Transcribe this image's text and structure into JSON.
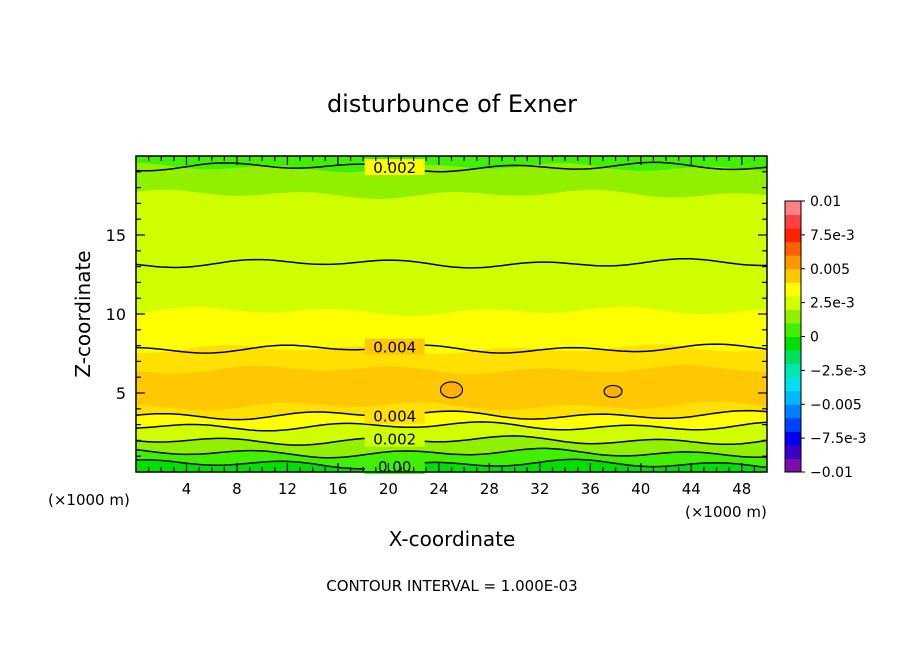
{
  "chart_data": {
    "type": "contour",
    "title": "disturbunce of Exner",
    "xlabel": "X-coordinate",
    "ylabel": "Z-coordinate",
    "x_unit_left": "(×1000 m)",
    "x_unit_right": "(×1000 m)",
    "xlim": [
      0,
      50
    ],
    "ylim": [
      0,
      20
    ],
    "x_ticks": [
      4,
      8,
      12,
      16,
      20,
      24,
      28,
      32,
      36,
      40,
      44,
      48
    ],
    "y_ticks": [
      5,
      10,
      15
    ],
    "footer": "CONTOUR INTERVAL = 1.000E-03",
    "contour_interval": 0.001,
    "colorbar": {
      "tick_labels": [
        "0.01",
        "7.5e-3",
        "0.005",
        "2.5e-3",
        "0",
        "−2.5e-3",
        "−0.005",
        "−7.5e-3",
        "−0.01"
      ],
      "range": [
        -0.01,
        0.01
      ],
      "colors": [
        "#7b0fa8",
        "#3b00c8",
        "#0000f0",
        "#0040ff",
        "#0080ff",
        "#00b8ff",
        "#00e0f0",
        "#00e8b0",
        "#00e060",
        "#00e000",
        "#40f000",
        "#90f000",
        "#d0ff00",
        "#ffff00",
        "#ffc800",
        "#ff9800",
        "#ff6000",
        "#ff2000",
        "#ff4040",
        "#ff8080"
      ]
    },
    "bands": [
      {
        "z_bottom": 0.0,
        "z_top": 0.5,
        "color": "#00e000"
      },
      {
        "z_bottom": 0.5,
        "z_top": 1.2,
        "color": "#40f000"
      },
      {
        "z_bottom": 1.2,
        "z_top": 2.0,
        "color": "#90f000"
      },
      {
        "z_bottom": 2.0,
        "z_top": 2.9,
        "color": "#d0ff00"
      },
      {
        "z_bottom": 2.9,
        "z_top": 3.6,
        "color": "#ffff00"
      },
      {
        "z_bottom": 3.6,
        "z_top": 4.2,
        "color": "#ffe000"
      },
      {
        "z_bottom": 4.2,
        "z_top": 6.5,
        "color": "#ffc800"
      },
      {
        "z_bottom": 6.5,
        "z_top": 7.8,
        "color": "#ffe000"
      },
      {
        "z_bottom": 7.8,
        "z_top": 10.2,
        "color": "#ffff00"
      },
      {
        "z_bottom": 10.2,
        "z_top": 17.6,
        "color": "#d0ff00"
      },
      {
        "z_bottom": 17.6,
        "z_top": 19.3,
        "color": "#90f000"
      },
      {
        "z_bottom": 19.3,
        "z_top": 20.0,
        "color": "#40f000"
      }
    ],
    "contours": [
      {
        "level": 0.0,
        "z": 0.5,
        "label": "0.00"
      },
      {
        "level": 0.001,
        "z": 1.2,
        "label": ""
      },
      {
        "level": 0.002,
        "z": 2.0,
        "label": "0.002"
      },
      {
        "level": 0.003,
        "z": 2.9,
        "label": ""
      },
      {
        "level": 0.004,
        "z": 3.6,
        "label": "0.004"
      },
      {
        "level": 0.004,
        "z": 7.8,
        "label": "0.004"
      },
      {
        "level": 0.003,
        "z": 13.2,
        "label": ""
      },
      {
        "level": 0.002,
        "z": 19.3,
        "label": "0.002"
      }
    ],
    "closed_contours": [
      {
        "x": 25.0,
        "z": 5.2
      },
      {
        "x": 37.8,
        "z": 5.1
      }
    ]
  }
}
